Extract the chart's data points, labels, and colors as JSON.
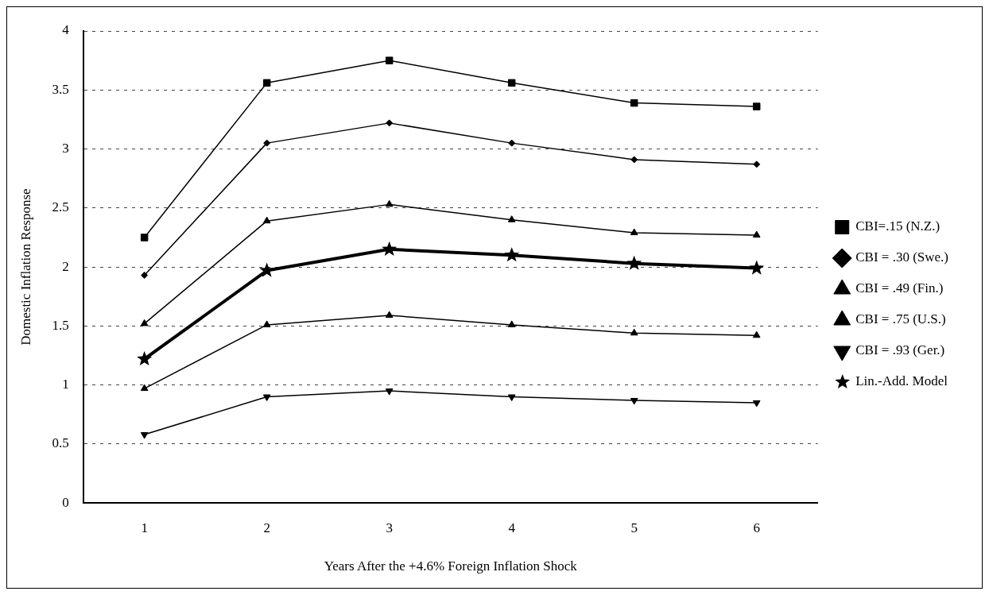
{
  "chart_data": {
    "type": "line",
    "xlabel": "Years After the +4.6% Foreign Inflation Shock",
    "ylabel": "Domestic Inflation Response",
    "categories": [
      "1",
      "2",
      "3",
      "4",
      "5",
      "6"
    ],
    "ylim": [
      0,
      4
    ],
    "yticks": [
      0,
      0.5,
      1,
      1.5,
      2,
      2.5,
      3,
      3.5,
      4
    ],
    "grid": "y",
    "legend": "right",
    "line_style": "solid",
    "series": [
      {
        "name": "CBI=.15 (N.Z.)",
        "color": "#000000",
        "marker": "square",
        "values": [
          2.25,
          3.56,
          3.75,
          3.56,
          3.39,
          3.36
        ]
      },
      {
        "name": "CBI = .30 (Swe.)",
        "color": "#000000",
        "marker": "diamond",
        "values": [
          1.93,
          3.05,
          3.22,
          3.05,
          2.91,
          2.87
        ]
      },
      {
        "name": "CBI = .49 (Fin.)",
        "color": "#000000",
        "marker": "triangle",
        "values": [
          1.52,
          2.39,
          2.53,
          2.4,
          2.29,
          2.27
        ]
      },
      {
        "name": "CBI = .75 (U.S.)",
        "color": "#000000",
        "marker": "triangle",
        "values": [
          0.97,
          1.51,
          1.59,
          1.51,
          1.44,
          1.42
        ]
      },
      {
        "name": "CBI = .93 (Ger.)",
        "color": "#000000",
        "marker": "triangle-down",
        "values": [
          0.58,
          0.9,
          0.95,
          0.9,
          0.87,
          0.85
        ]
      },
      {
        "name": "Lin.-Add. Model",
        "color": "#000000",
        "marker": "star",
        "values": [
          1.22,
          1.97,
          2.15,
          2.1,
          2.03,
          1.99
        ]
      }
    ]
  }
}
